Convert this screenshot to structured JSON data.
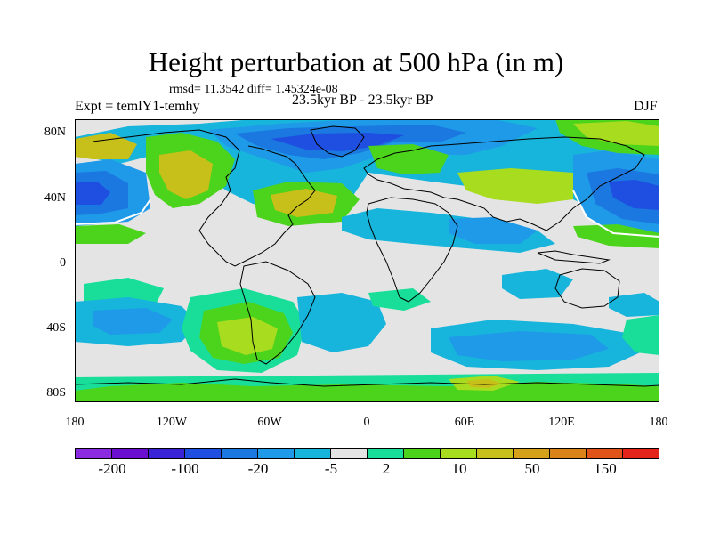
{
  "title": "Height perturbation at 500 hPa (in m)",
  "stats": "rmsd= 11.3542 diff= 1.45324e-08",
  "subtitle": "23.5kyr BP - 23.5kyr BP",
  "left_label": "Expt = temlY1-temhy",
  "season": "DJF",
  "lat_ticks": [
    "80N",
    "40N",
    "0",
    "40S",
    "80S"
  ],
  "lon_ticks": [
    "180",
    "120W",
    "60W",
    "0",
    "60E",
    "120E",
    "180"
  ],
  "colorbar": {
    "colors": [
      "#8a2be2",
      "#6a0fd0",
      "#3a22d6",
      "#1f4fe0",
      "#1a78e0",
      "#1f9ae8",
      "#17b4dc",
      "#e4e4e4",
      "#19de9a",
      "#4cd31c",
      "#a8dc1e",
      "#c8c01a",
      "#d5a01a",
      "#d98318",
      "#e0541a",
      "#e4241a"
    ],
    "labels": [
      "-200",
      "-100",
      "-20",
      "-5",
      "2",
      "10",
      "50",
      "150"
    ]
  },
  "map": {
    "background_color": "#e4e4e4"
  }
}
